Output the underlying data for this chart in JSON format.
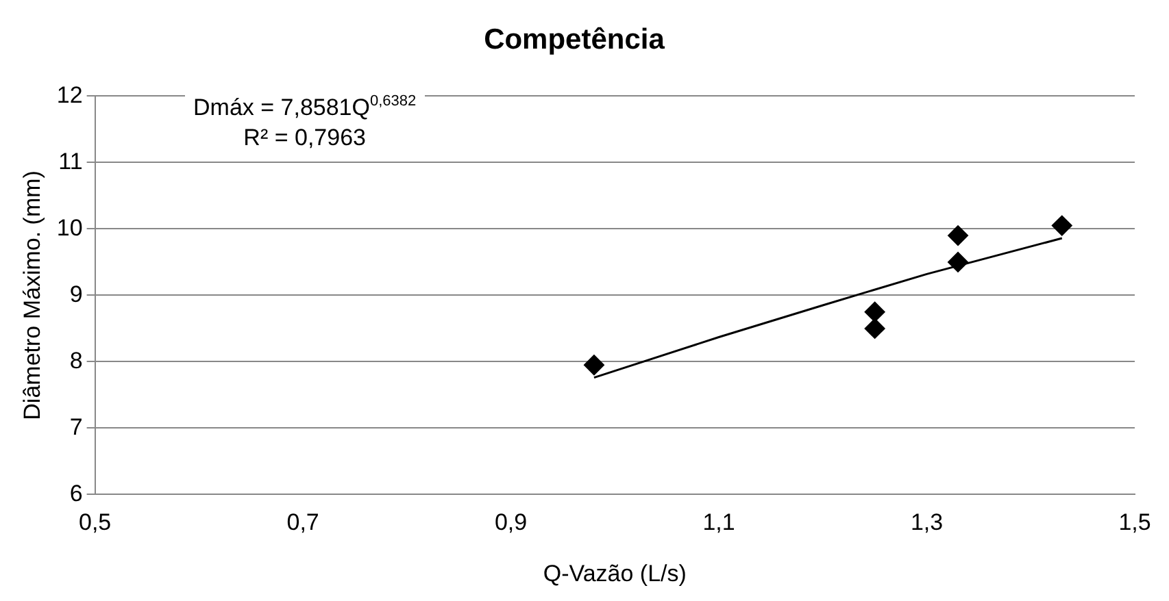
{
  "chart_data": {
    "type": "scatter",
    "title": "Competência",
    "xlabel": "Q-Vazão (L/s)",
    "ylabel": "Diâmetro Máximo. (mm)",
    "annotations": [
      "Dmáx = 7,8581Q$^{0,6382}$\nR² = 0,7963"
    ],
    "series": [
      {
        "color": "#000000",
        "marker": "diamond",
        "x": [
          0.98,
          1.25,
          1.25,
          1.33,
          1.33,
          1.43
        ],
        "values": [
          7.95,
          8.75,
          8.5,
          9.9,
          9.5,
          10.05
        ]
      },
      {
        "type": "line",
        "color": "#000000",
        "marker": "none",
        "x": [
          0.98,
          1.1,
          1.2,
          1.3,
          1.43
        ],
        "values": [
          7.76,
          8.37,
          8.85,
          9.32,
          9.86
        ]
      }
    ],
    "xlim": [
      0.5,
      1.5
    ],
    "xticks": [
      {
        "value": 0.5,
        "label": "0,5"
      },
      {
        "value": 0.7,
        "label": "0,7"
      },
      {
        "value": 0.9,
        "label": "0,9"
      },
      {
        "value": 1.1,
        "label": "1,1"
      },
      {
        "value": 1.3,
        "label": "1,3"
      },
      {
        "value": 1.5,
        "label": "1,5"
      }
    ],
    "ylim": [
      6,
      12
    ],
    "yticks": [
      6,
      7,
      8,
      9,
      10,
      11,
      12
    ],
    "grid": "y",
    "legend": false
  }
}
